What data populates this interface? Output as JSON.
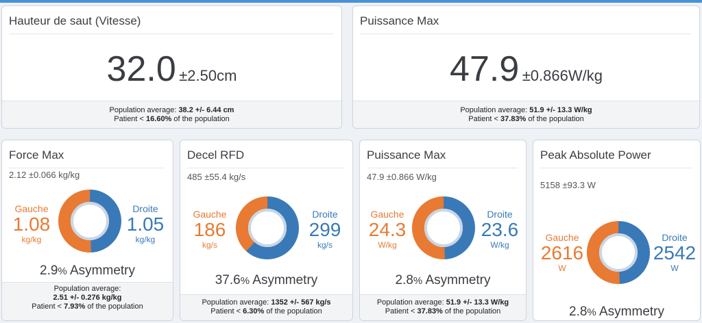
{
  "colors": {
    "left": "#e87a33",
    "right": "#3979b8",
    "inner": "#c9d6e6"
  },
  "top_cards": [
    {
      "title": "Hauteur de saut (Vitesse)",
      "value": "32.0",
      "err": "±2.50cm",
      "pop_prefix": "Population average: ",
      "pop_value": "38.2 +/- 6.44 cm",
      "pat_prefix": "Patient < ",
      "pat_value": "16.60%",
      "pat_suffix": " of the population"
    },
    {
      "title": "Puissance Max",
      "value": "47.9",
      "err": "±0.866W/kg",
      "pop_prefix": "Population average: ",
      "pop_value": "51.9 +/- 13.3 W/kg",
      "pat_prefix": "Patient < ",
      "pat_value": "37.83%",
      "pat_suffix": " of the population"
    }
  ],
  "cards": [
    {
      "title": "Force Max",
      "value": "2.12  ±0.066 kg/kg",
      "left_label": "Gauche",
      "left_value": "1.08",
      "left_unit": "kg/kg",
      "right_label": "Droite",
      "right_value": "1.05",
      "right_unit": "kg/kg",
      "left_fraction": 0.507,
      "asym_value": "2.9",
      "asym_pct": "%",
      "asym_label": " Asymmetry",
      "pop_line1": "Population average:",
      "pop_value": "2.51 +/- 0.276 kg/kg",
      "pat_prefix": "Patient < ",
      "pat_value": "7.93%",
      "pat_suffix": " of the population"
    },
    {
      "title": "Decel RFD",
      "value": "485  ±55.4 kg/s",
      "left_label": "Gauche",
      "left_value": "186",
      "left_unit": "kg/s",
      "right_label": "Droite",
      "right_value": "299",
      "right_unit": "kg/s",
      "left_fraction": 0.383,
      "asym_value": "37.6",
      "asym_pct": "%",
      "asym_label": " Asymmetry",
      "pop_line1": "Population average: ",
      "pop_value": "1352 +/- 567 kg/s",
      "pat_prefix": "Patient < ",
      "pat_value": "6.30%",
      "pat_suffix": " of the population"
    },
    {
      "title": "Puissance Max",
      "value": "47.9  ±0.866 W/kg",
      "left_label": "Gauche",
      "left_value": "24.3",
      "left_unit": "W/kg",
      "right_label": "Droite",
      "right_value": "23.6",
      "right_unit": "W/kg",
      "left_fraction": 0.507,
      "asym_value": "2.8",
      "asym_pct": "%",
      "asym_label": " Asymmetry",
      "pop_line1": "Population average: ",
      "pop_value": "51.9 +/- 13.3 W/kg",
      "pat_prefix": "Patient < ",
      "pat_value": "37.83%",
      "pat_suffix": " of the population"
    },
    {
      "title": "Peak Absolute Power",
      "value": "5158  ±93.3 W",
      "left_label": "Gauche",
      "left_value": "2616",
      "left_unit": "W",
      "right_label": "Droite",
      "right_value": "2542",
      "right_unit": "W",
      "left_fraction": 0.507,
      "asym_value": "2.8",
      "asym_pct": "%",
      "asym_label": " Asymmetry"
    }
  ]
}
